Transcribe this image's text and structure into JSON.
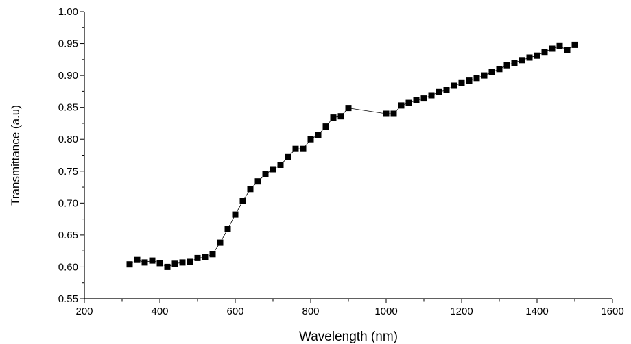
{
  "chart_data": {
    "type": "line",
    "title": "",
    "xlabel": "Wavelength (nm)",
    "ylabel": "Transmittance (a.u)",
    "xlim": [
      200,
      1600
    ],
    "ylim": [
      0.55,
      1.0
    ],
    "x_ticks": [
      "200",
      "400",
      "600",
      "800",
      "1000",
      "1200",
      "1400",
      "1600"
    ],
    "y_ticks": [
      "0.55",
      "0.60",
      "0.65",
      "0.70",
      "0.75",
      "0.80",
      "0.85",
      "0.90",
      "0.95",
      "1.00"
    ],
    "grid": false,
    "legend": "none",
    "marker": "square",
    "series_color": "#000000",
    "series": [
      {
        "x": [
          320,
          340,
          360,
          380,
          400,
          420,
          440,
          460,
          480,
          500,
          520,
          540,
          560,
          580,
          600,
          620,
          640,
          660,
          680,
          700,
          720,
          740,
          760,
          780,
          800,
          820,
          840,
          860,
          880,
          900,
          1000,
          1020,
          1040,
          1060,
          1080,
          1100,
          1120,
          1140,
          1160,
          1180,
          1200,
          1220,
          1240,
          1260,
          1280,
          1300,
          1320,
          1340,
          1360,
          1380,
          1400,
          1420,
          1440,
          1460,
          1480,
          1500
        ],
        "y": [
          0.604,
          0.611,
          0.607,
          0.61,
          0.606,
          0.6,
          0.605,
          0.607,
          0.608,
          0.614,
          0.615,
          0.62,
          0.638,
          0.659,
          0.682,
          0.703,
          0.722,
          0.734,
          0.745,
          0.753,
          0.76,
          0.772,
          0.785,
          0.785,
          0.8,
          0.807,
          0.82,
          0.834,
          0.836,
          0.849,
          0.84,
          0.84,
          0.853,
          0.857,
          0.861,
          0.864,
          0.869,
          0.874,
          0.877,
          0.884,
          0.888,
          0.892,
          0.896,
          0.9,
          0.905,
          0.91,
          0.916,
          0.92,
          0.924,
          0.928,
          0.931,
          0.937,
          0.942,
          0.946,
          0.94,
          0.948
        ]
      }
    ]
  }
}
